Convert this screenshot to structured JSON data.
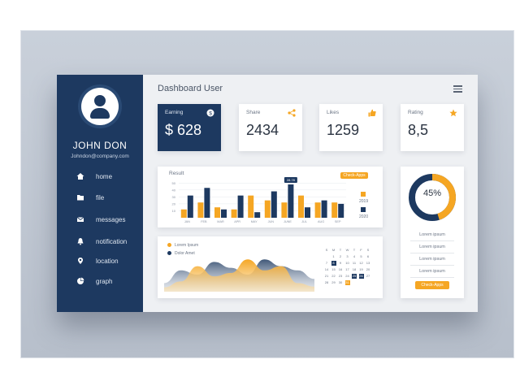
{
  "colors": {
    "navy": "#1d3960",
    "orange": "#f5a623",
    "page": "#eef0f3"
  },
  "sidebar": {
    "user_name": "JOHN DON",
    "email": "Johndon@company.com",
    "items": [
      {
        "label": "home",
        "icon": "home-icon"
      },
      {
        "label": "file",
        "icon": "folder-icon"
      },
      {
        "label": "messages",
        "icon": "mail-icon"
      },
      {
        "label": "notification",
        "icon": "bell-icon"
      },
      {
        "label": "location",
        "icon": "map-pin-icon"
      },
      {
        "label": "graph",
        "icon": "pie-chart-icon"
      }
    ]
  },
  "header": {
    "title": "Dashboard User"
  },
  "stats": {
    "earning": {
      "label": "Earning",
      "value": "$ 628",
      "icon": "dollar-icon"
    },
    "share": {
      "label": "Share",
      "value": "2434",
      "icon": "share-icon"
    },
    "likes": {
      "label": "Likes",
      "value": "1259",
      "icon": "thumbs-up-icon"
    },
    "rating": {
      "label": "Rating",
      "value": "8,5",
      "icon": "star-icon"
    }
  },
  "result": {
    "title": "Result",
    "button": "Check-Apps",
    "tooltip": "28.78",
    "legend": [
      "2019",
      "2020"
    ]
  },
  "area": {
    "legend": [
      "Lorem Ipsum",
      "Dolor Amet"
    ]
  },
  "calendar": {
    "weekdays": [
      "S",
      "M",
      "T",
      "W",
      "T",
      "F",
      "S"
    ],
    "dates": [
      [
        "",
        "1",
        "2",
        "3",
        "4",
        "5",
        "6"
      ],
      [
        "7",
        "8",
        "9",
        "10",
        "11",
        "12",
        "13"
      ],
      [
        "14",
        "15",
        "16",
        "17",
        "18",
        "19",
        "20"
      ],
      [
        "21",
        "22",
        "23",
        "24",
        "25",
        "26",
        "27"
      ],
      [
        "28",
        "29",
        "30",
        "31",
        "",
        "",
        ""
      ]
    ]
  },
  "donut": {
    "value_label": "45%",
    "items": [
      "Lorem ipsum",
      "Lorem ipsum",
      "Lorem ipsum",
      "Lorem ipsum"
    ],
    "button": "Check-Apps"
  },
  "chart_data": [
    {
      "type": "bar",
      "title": "Result",
      "categories": [
        "JAN",
        "FEB",
        "MAR",
        "APR",
        "MAY",
        "JUN",
        "JUNE",
        "JUL",
        "AUG",
        "SEP"
      ],
      "yticks": [
        10,
        20,
        30,
        40,
        50
      ],
      "ylim": [
        0,
        55
      ],
      "series": [
        {
          "name": "2019",
          "values": [
            12,
            22,
            15,
            12,
            32,
            25,
            22,
            32,
            22,
            22
          ]
        },
        {
          "name": "2020",
          "values": [
            32,
            43,
            12,
            32,
            8,
            38,
            48,
            15,
            25,
            20
          ]
        }
      ]
    },
    {
      "type": "area",
      "series": [
        {
          "name": "Lorem Ipsum",
          "values": [
            5,
            12,
            30,
            18,
            22,
            38,
            25,
            30,
            10,
            6
          ]
        },
        {
          "name": "Dolor Amet",
          "values": [
            10,
            25,
            20,
            35,
            28,
            20,
            38,
            30,
            25,
            15
          ]
        }
      ]
    },
    {
      "type": "pie",
      "values": [
        45,
        55
      ],
      "labels": [
        "45%",
        ""
      ]
    }
  ]
}
